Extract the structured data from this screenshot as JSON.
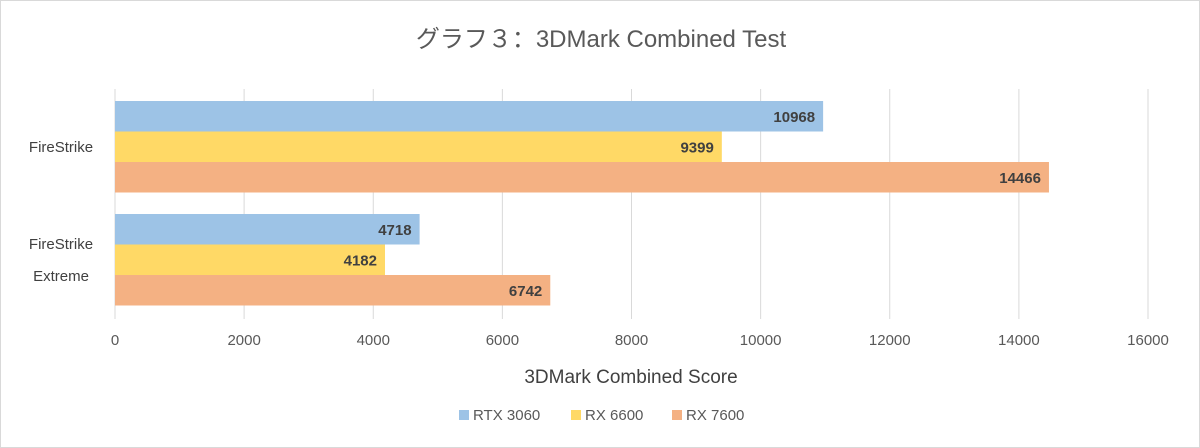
{
  "chart_data": {
    "type": "bar",
    "orientation": "horizontal",
    "title": "グラフ３：3DMark Combined Test",
    "xlabel": "3DMark Combined Score",
    "ylabel": "",
    "categories": [
      [
        "FireStrike"
      ],
      [
        "FireStrike",
        "Extreme"
      ]
    ],
    "series": [
      {
        "name": "RTX 3060",
        "color": "#9DC3E6",
        "values": [
          10968,
          4718
        ]
      },
      {
        "name": "RX 6600",
        "color": "#FFD966",
        "values": [
          9399,
          4182
        ]
      },
      {
        "name": "RX 7600",
        "color": "#F4B183",
        "values": [
          14466,
          6742
        ]
      }
    ],
    "xlim": [
      0,
      16000
    ],
    "xticks": [
      "0",
      "2000",
      "4000",
      "6000",
      "8000",
      "10000",
      "12000",
      "14000",
      "16000"
    ],
    "grid": "vertical",
    "legend": "bottom"
  }
}
